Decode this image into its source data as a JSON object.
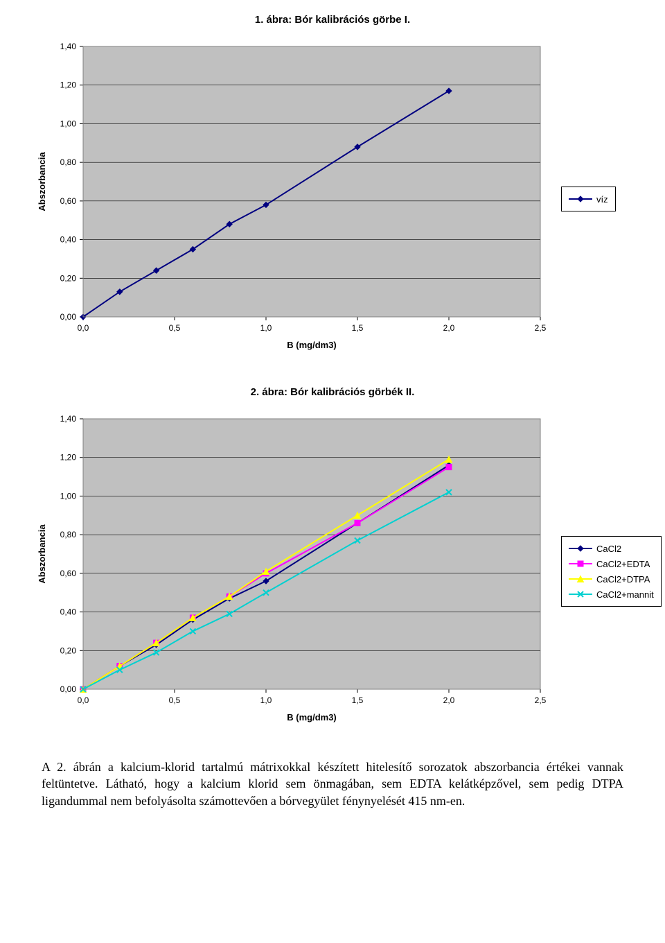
{
  "chart1": {
    "title": "1. ábra: Bór kalibrációs görbe I.",
    "type": "line",
    "xlabel": "B (mg/dm3)",
    "ylabel": "Abszorbancia",
    "xlim": [
      0.0,
      2.5
    ],
    "ylim": [
      0.0,
      1.4
    ],
    "xtick_step": 0.5,
    "ytick_step": 0.2,
    "xtick_labels": [
      "0,0",
      "0,5",
      "1,0",
      "1,5",
      "2,0",
      "2,5"
    ],
    "ytick_labels": [
      "0,00",
      "0,20",
      "0,40",
      "0,60",
      "0,80",
      "1,00",
      "1,20",
      "1,40"
    ],
    "plot_bg": "#c0c0c0",
    "grid_color": "#000000",
    "axis_color": "#808080",
    "label_fontsize": 13,
    "tick_fontsize": 12,
    "series": [
      {
        "name": "víz",
        "color": "#000080",
        "marker": "diamond",
        "marker_size": 8,
        "line_width": 2,
        "x": [
          0.0,
          0.2,
          0.4,
          0.6,
          0.8,
          1.0,
          1.5,
          2.0
        ],
        "y": [
          0.0,
          0.13,
          0.24,
          0.35,
          0.48,
          0.58,
          0.88,
          1.17
        ]
      }
    ],
    "legend_border": "#000000",
    "legend_bg": "#ffffff"
  },
  "chart2": {
    "title": "2. ábra: Bór kalibrációs görbék II.",
    "type": "line",
    "xlabel": "B (mg/dm3)",
    "ylabel": "Abszorbancia",
    "xlim": [
      0.0,
      2.5
    ],
    "ylim": [
      0.0,
      1.4
    ],
    "xtick_step": 0.5,
    "ytick_step": 0.2,
    "xtick_labels": [
      "0,0",
      "0,5",
      "1,0",
      "1,5",
      "2,0",
      "2,5"
    ],
    "ytick_labels": [
      "0,00",
      "0,20",
      "0,40",
      "0,60",
      "0,80",
      "1,00",
      "1,20",
      "1,40"
    ],
    "plot_bg": "#c0c0c0",
    "grid_color": "#000000",
    "axis_color": "#808080",
    "label_fontsize": 13,
    "tick_fontsize": 12,
    "series": [
      {
        "name": "CaCl2",
        "color": "#000080",
        "marker": "diamond",
        "marker_size": 8,
        "line_width": 2,
        "x": [
          0.0,
          0.2,
          0.4,
          0.6,
          0.8,
          1.0,
          1.5,
          2.0
        ],
        "y": [
          0.0,
          0.12,
          0.23,
          0.36,
          0.47,
          0.56,
          0.86,
          1.16
        ]
      },
      {
        "name": "CaCl2+EDTA",
        "color": "#ff00ff",
        "marker": "square",
        "marker_size": 8,
        "line_width": 2,
        "x": [
          0.0,
          0.2,
          0.4,
          0.6,
          0.8,
          1.0,
          1.5,
          2.0
        ],
        "y": [
          0.0,
          0.12,
          0.24,
          0.37,
          0.48,
          0.6,
          0.86,
          1.15
        ]
      },
      {
        "name": "CaCl2+DTPA",
        "color": "#ffff00",
        "marker": "triangle",
        "marker_size": 9,
        "line_width": 2,
        "x": [
          0.0,
          0.2,
          0.4,
          0.6,
          0.8,
          1.0,
          1.5,
          2.0
        ],
        "y": [
          0.0,
          0.12,
          0.24,
          0.37,
          0.48,
          0.61,
          0.9,
          1.19
        ]
      },
      {
        "name": "CaCl2+mannit",
        "color": "#00d0d0",
        "marker": "xmark",
        "marker_size": 8,
        "line_width": 2,
        "x": [
          0.0,
          0.2,
          0.4,
          0.6,
          0.8,
          1.0,
          1.5,
          2.0
        ],
        "y": [
          0.0,
          0.1,
          0.19,
          0.3,
          0.39,
          0.5,
          0.77,
          1.02
        ]
      }
    ],
    "legend_border": "#000000",
    "legend_bg": "#ffffff"
  },
  "body_text": "A 2. ábrán a kalcium-klorid tartalmú mátrixokkal készített hitelesítő sorozatok abszorbancia értékei vannak feltüntetve. Látható, hogy a kalcium klorid sem önmagában, sem EDTA kelátképzővel, sem pedig DTPA ligandummal nem befolyásolta számottevően a bórvegyület fénynyelését 415 nm-en."
}
